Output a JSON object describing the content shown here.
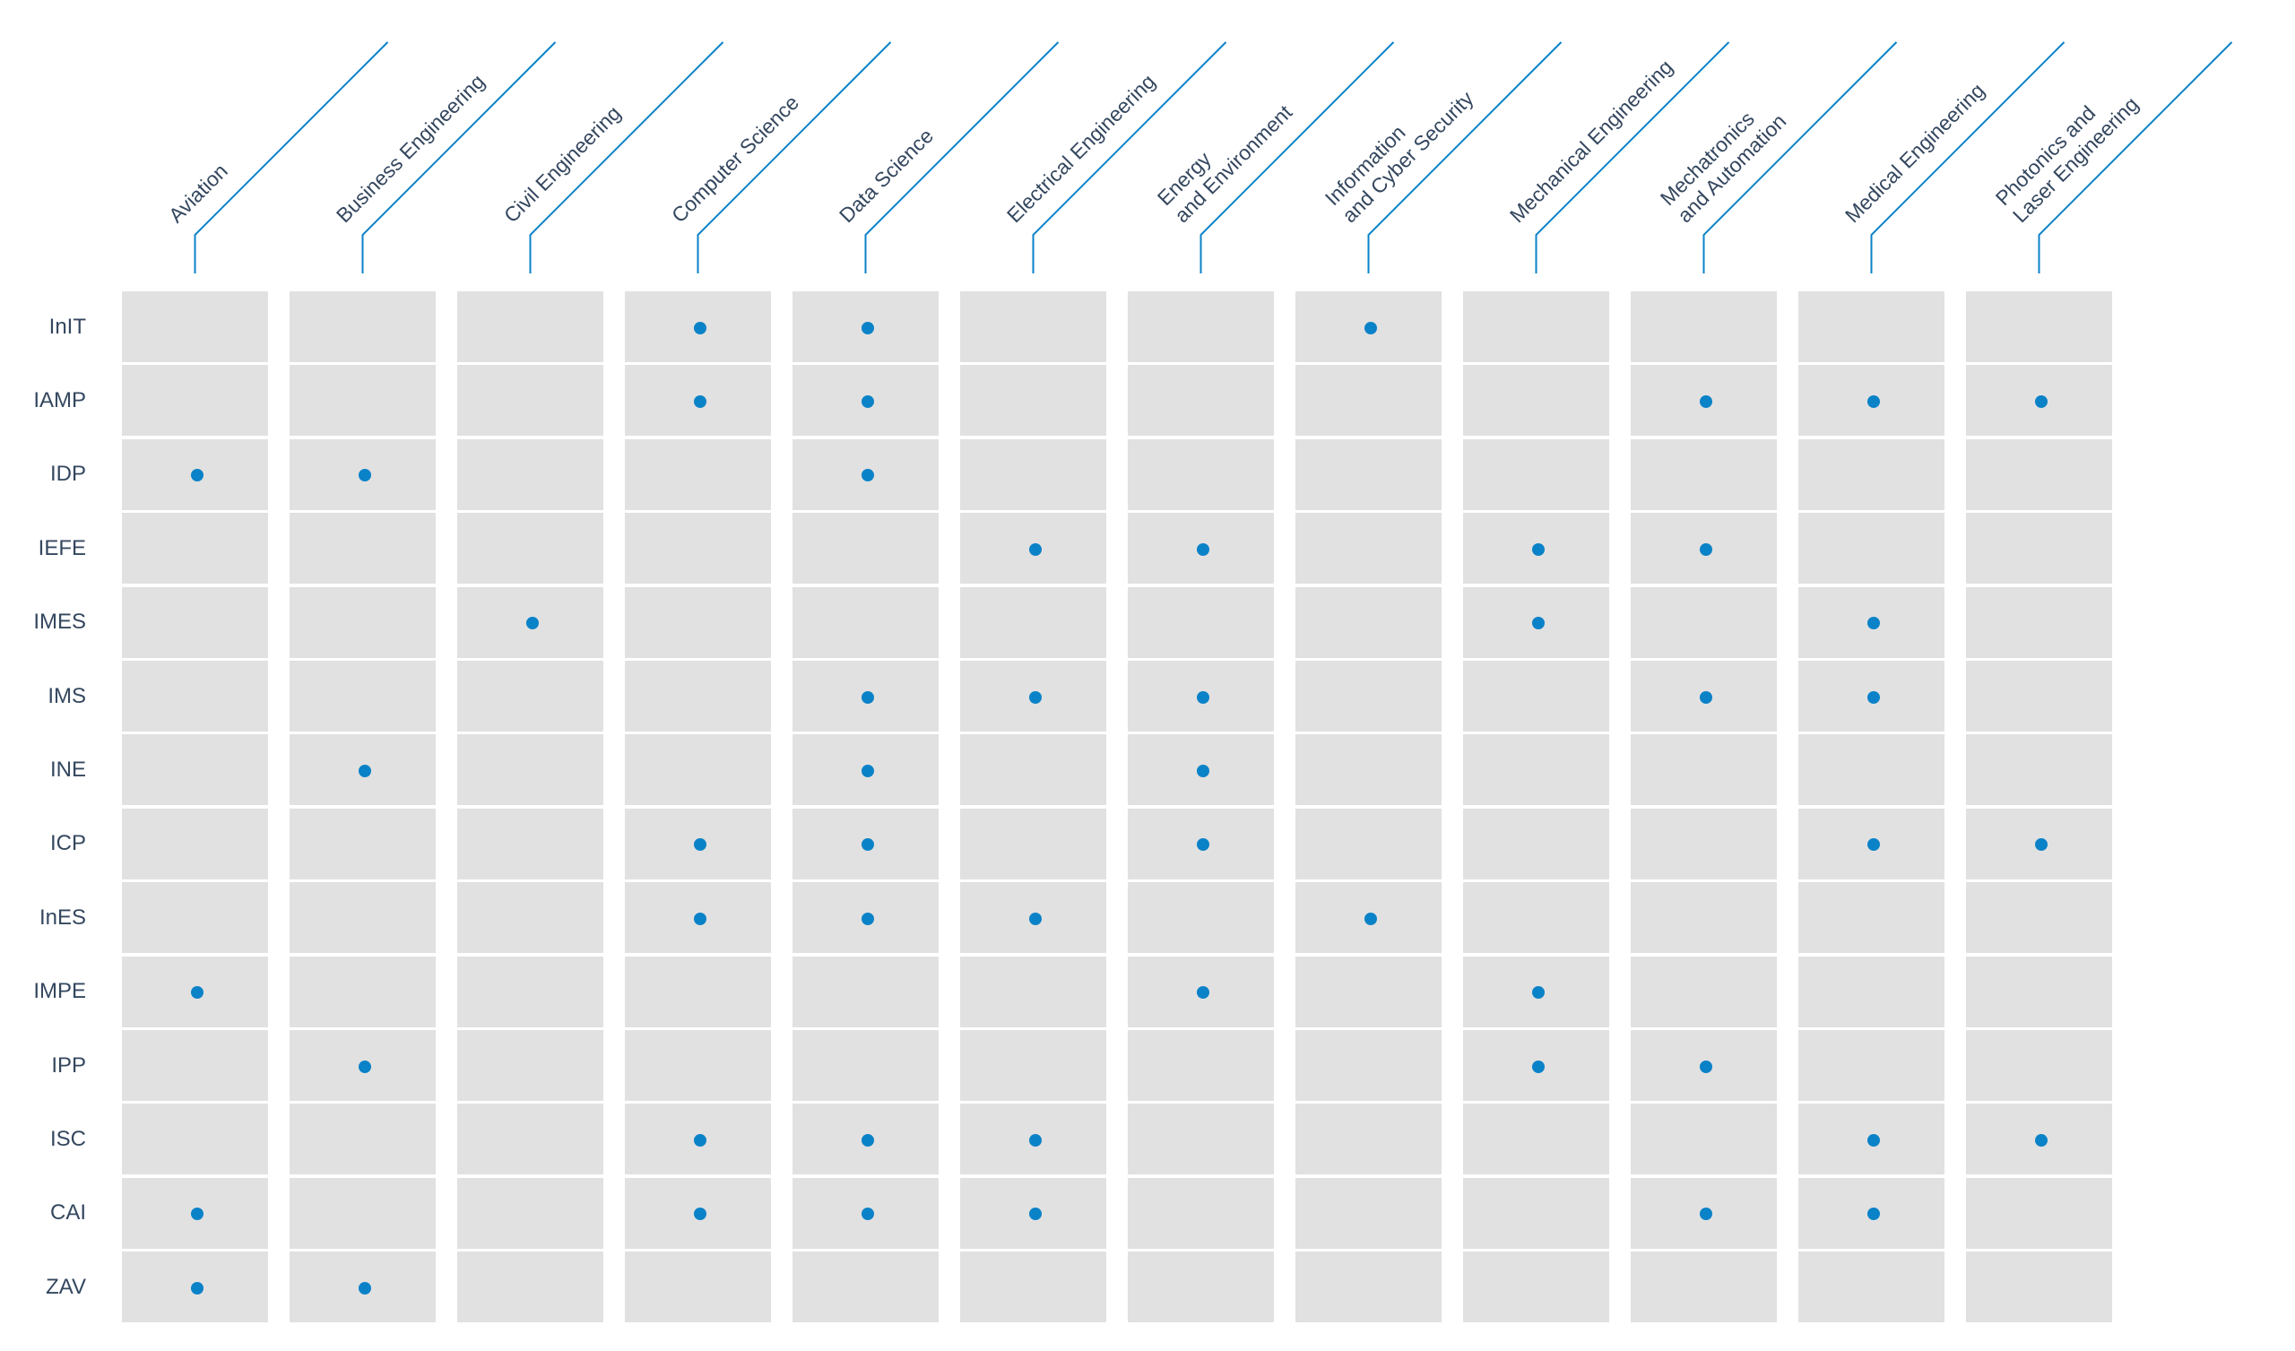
{
  "colors": {
    "accent": "#0a82c8",
    "cell": "#e1e1e1",
    "text": "#34475f"
  },
  "columns": [
    "Aviation",
    "Business Engineering",
    "Civil Engineering",
    "Computer Science",
    "Data Science",
    "Electrical Engineering",
    "Energy\nand Environment",
    "Information\nand Cyber Security",
    "Mechanical Engineering",
    "Mechatronics\nand Automation",
    "Medical Engineering",
    "Photonics and\nLaser Engineering"
  ],
  "rows": [
    {
      "label": "InIT",
      "marks": [
        3,
        4,
        7
      ]
    },
    {
      "label": "IAMP",
      "marks": [
        3,
        4,
        9,
        10,
        11
      ]
    },
    {
      "label": "IDP",
      "marks": [
        0,
        1,
        4
      ]
    },
    {
      "label": "IEFE",
      "marks": [
        5,
        6,
        8,
        9
      ]
    },
    {
      "label": "IMES",
      "marks": [
        2,
        8,
        10
      ]
    },
    {
      "label": "IMS",
      "marks": [
        4,
        5,
        6,
        9,
        10
      ]
    },
    {
      "label": "INE",
      "marks": [
        1,
        4,
        6
      ]
    },
    {
      "label": "ICP",
      "marks": [
        3,
        4,
        6,
        10,
        11
      ]
    },
    {
      "label": "InES",
      "marks": [
        3,
        4,
        5,
        7
      ]
    },
    {
      "label": "IMPE",
      "marks": [
        0,
        6,
        8
      ]
    },
    {
      "label": "IPP",
      "marks": [
        1,
        8,
        9
      ]
    },
    {
      "label": "ISC",
      "marks": [
        3,
        4,
        5,
        10,
        11
      ]
    },
    {
      "label": "CAI",
      "marks": [
        0,
        3,
        4,
        5,
        9,
        10
      ]
    },
    {
      "label": "ZAV",
      "marks": [
        0,
        1
      ]
    }
  ]
}
